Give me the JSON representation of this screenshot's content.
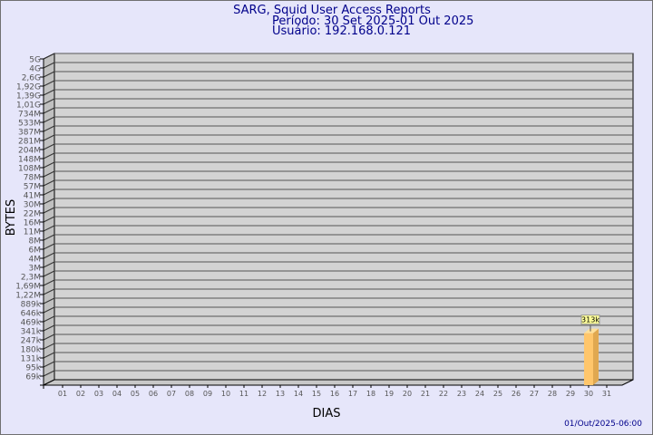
{
  "chart_data": {
    "type": "bar",
    "title": "SARG, Squid User Access Reports",
    "subtitle_period": "Período: 30 Set 2025-01 Out 2025",
    "subtitle_user": "Usuário: 192.168.0.121",
    "xlabel": "DIAS",
    "ylabel": "BYTES",
    "footer": "01/Out/2025-06:00",
    "y_scale": "log",
    "grid": true,
    "y_ticks": [
      "5G",
      "4G",
      "2,6G",
      "1,92G",
      "1,39G",
      "1,01G",
      "734M",
      "533M",
      "387M",
      "281M",
      "204M",
      "148M",
      "108M",
      "78M",
      "57M",
      "41M",
      "30M",
      "22M",
      "16M",
      "11M",
      "8M",
      "6M",
      "4M",
      "3M",
      "2,3M",
      "1,69M",
      "1,22M",
      "889k",
      "646k",
      "469k",
      "341k",
      "247k",
      "180k",
      "131k",
      "95k",
      "69k"
    ],
    "y_tick_values": [
      5000000000.0,
      4000000000.0,
      2600000000.0,
      1920000000.0,
      1390000000.0,
      1010000000.0,
      734000000.0,
      533000000.0,
      387000000.0,
      281000000.0,
      204000000.0,
      148000000.0,
      108000000.0,
      78000000.0,
      57000000.0,
      41000000.0,
      30000000.0,
      22000000.0,
      16000000.0,
      11000000.0,
      8000000.0,
      6000000.0,
      4000000.0,
      3000000.0,
      2300000.0,
      1690000.0,
      1220000.0,
      889000.0,
      646000.0,
      469000.0,
      341000.0,
      247000.0,
      180000.0,
      131000.0,
      95000.0,
      69000.0
    ],
    "categories": [
      "01",
      "02",
      "03",
      "04",
      "05",
      "06",
      "07",
      "08",
      "09",
      "10",
      "11",
      "12",
      "13",
      "14",
      "15",
      "16",
      "17",
      "18",
      "19",
      "20",
      "21",
      "22",
      "23",
      "24",
      "25",
      "26",
      "27",
      "28",
      "29",
      "30",
      "31"
    ],
    "bars": [
      {
        "day": "30",
        "value": 313000,
        "label": "313k"
      }
    ],
    "colors": {
      "background": "#e6e6fa",
      "wall": "#d3d3d3",
      "bar": "#ffc66b",
      "bar_side": "#e0a850",
      "bar_top": "#ffe09a",
      "title": "#00008b",
      "label_box": "#ffff99"
    }
  }
}
